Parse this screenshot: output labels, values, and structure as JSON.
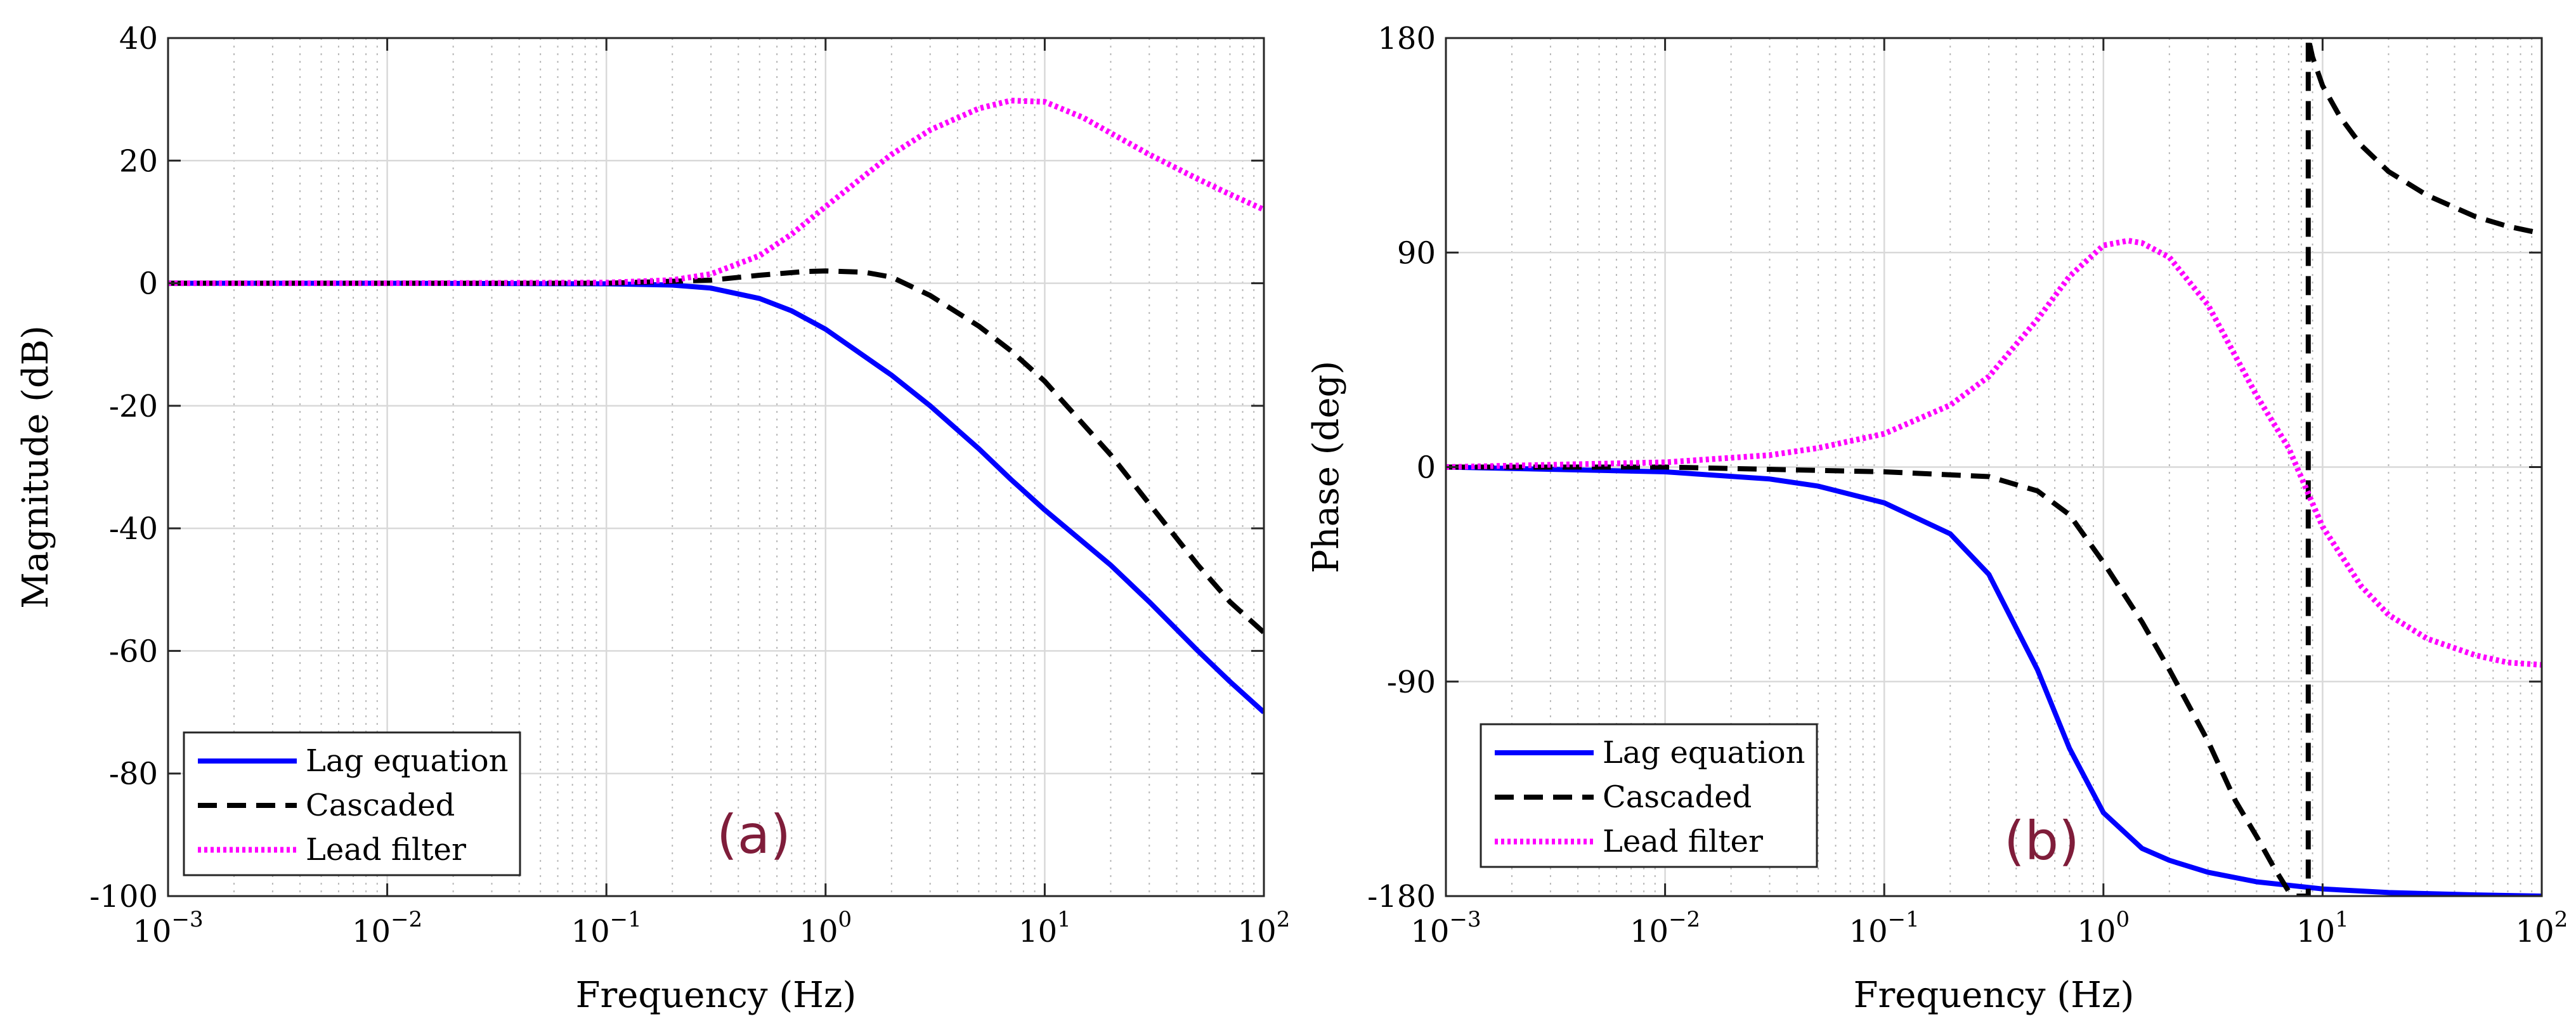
{
  "figure": {
    "panel_labels": [
      "(a)",
      "(b)"
    ]
  },
  "chart_data": [
    {
      "type": "line",
      "panel": "(a)",
      "title": "",
      "xlabel": "Frequency (Hz)",
      "ylabel": "Magnitude (dB)",
      "xscale": "log",
      "xlim": [
        0.001,
        100
      ],
      "ylim": [
        -100,
        40
      ],
      "xticks": [
        0.001,
        0.01,
        0.1,
        1,
        10,
        100
      ],
      "xtick_labels": [
        {
          "base": "10",
          "exp": "−3"
        },
        {
          "base": "10",
          "exp": "−2"
        },
        {
          "base": "10",
          "exp": "−1"
        },
        {
          "base": "10",
          "exp": "0"
        },
        {
          "base": "10",
          "exp": "1"
        },
        {
          "base": "10",
          "exp": "2"
        }
      ],
      "yticks": [
        -100,
        -80,
        -60,
        -40,
        -20,
        0,
        20,
        40
      ],
      "ytick_labels": [
        "-100",
        "-80",
        "-60",
        "-40",
        "-20",
        "0",
        "20",
        "40"
      ],
      "grid": true,
      "legend": {
        "location": "bottom-left",
        "entries": [
          "Lag equation",
          "Cascaded",
          "Lead filter"
        ]
      },
      "series": [
        {
          "name": "Lag equation",
          "color": "#0000ff",
          "style": "solid",
          "x": [
            0.001,
            0.01,
            0.1,
            0.2,
            0.3,
            0.5,
            0.7,
            1,
            2,
            3,
            5,
            7,
            10,
            20,
            30,
            50,
            70,
            100
          ],
          "y": [
            0,
            0,
            -0.1,
            -0.3,
            -0.8,
            -2.5,
            -4.5,
            -7.5,
            -15,
            -20,
            -27,
            -32,
            -37,
            -46,
            -52,
            -60,
            -65,
            -70
          ]
        },
        {
          "name": "Cascaded",
          "color": "#000000",
          "style": "dashed",
          "x": [
            0.001,
            0.01,
            0.1,
            0.3,
            0.5,
            0.8,
            1,
            1.5,
            2,
            3,
            5,
            7,
            10,
            20,
            30,
            50,
            70,
            100
          ],
          "y": [
            0,
            0,
            0,
            0.5,
            1.3,
            1.9,
            2,
            1.8,
            1,
            -2,
            -7,
            -11,
            -16,
            -28,
            -36,
            -46,
            -52,
            -57
          ]
        },
        {
          "name": "Lead filter",
          "color": "#ff00ff",
          "style": "dotted",
          "x": [
            0.001,
            0.01,
            0.1,
            0.2,
            0.3,
            0.5,
            0.7,
            1,
            1.5,
            2,
            3,
            5,
            7,
            10,
            15,
            20,
            30,
            50,
            70,
            100
          ],
          "y": [
            0,
            0,
            0.1,
            0.5,
            1.5,
            4.5,
            8,
            12.5,
            17.5,
            21,
            25,
            28.5,
            29.8,
            29.6,
            27,
            24.5,
            21,
            17,
            14.5,
            12
          ]
        }
      ]
    },
    {
      "type": "line",
      "panel": "(b)",
      "title": "",
      "xlabel": "Frequency (Hz)",
      "ylabel": "Phase (deg)",
      "xscale": "log",
      "xlim": [
        0.001,
        100
      ],
      "ylim": [
        -180,
        180
      ],
      "xticks": [
        0.001,
        0.01,
        0.1,
        1,
        10,
        100
      ],
      "xtick_labels": [
        {
          "base": "10",
          "exp": "−3"
        },
        {
          "base": "10",
          "exp": "−2"
        },
        {
          "base": "10",
          "exp": "−1"
        },
        {
          "base": "10",
          "exp": "0"
        },
        {
          "base": "10",
          "exp": "1"
        },
        {
          "base": "10",
          "exp": "2"
        }
      ],
      "yticks": [
        -180,
        -90,
        0,
        90,
        180
      ],
      "ytick_labels": [
        "-180",
        "-90",
        "0",
        "90",
        "180"
      ],
      "grid": true,
      "legend": {
        "location": "bottom-left",
        "entries": [
          "Lag equation",
          "Cascaded",
          "Lead filter"
        ]
      },
      "series": [
        {
          "name": "Lag equation",
          "color": "#0000ff",
          "style": "solid",
          "x": [
            0.001,
            0.01,
            0.03,
            0.05,
            0.1,
            0.2,
            0.3,
            0.5,
            0.7,
            1,
            1.5,
            2,
            3,
            5,
            10,
            20,
            50,
            100
          ],
          "y": [
            0,
            -2,
            -5,
            -8,
            -15,
            -28,
            -45,
            -85,
            -118,
            -145,
            -160,
            -165,
            -170,
            -174,
            -177,
            -178.5,
            -179.5,
            -180
          ]
        },
        {
          "name": "Cascaded",
          "color": "#000000",
          "style": "dashed",
          "x": [
            0.001,
            0.01,
            0.1,
            0.3,
            0.5,
            0.7,
            1,
            1.5,
            2,
            3,
            4,
            5,
            6,
            7,
            7.6,
            8.3,
            8.6,
            8.6,
            8.6,
            9,
            10,
            12,
            15,
            20,
            30,
            50,
            70,
            100
          ],
          "y": [
            0,
            0,
            -2,
            -4,
            -10,
            -20,
            -40,
            -65,
            -85,
            -115,
            -140,
            -155,
            -168,
            -178,
            -180,
            -180,
            -180,
            0,
            180,
            172,
            160,
            147,
            135,
            124,
            114,
            105,
            101,
            98
          ]
        },
        {
          "name": "Lead filter",
          "color": "#ff00ff",
          "style": "dotted",
          "x": [
            0.001,
            0.01,
            0.03,
            0.05,
            0.1,
            0.2,
            0.3,
            0.5,
            0.7,
            1,
            1.3,
            1.5,
            2,
            3,
            5,
            7,
            8.5,
            10,
            15,
            20,
            30,
            50,
            70,
            100
          ],
          "y": [
            0,
            2,
            5,
            8,
            14,
            26,
            38,
            62,
            80,
            93,
            95,
            94,
            88,
            68,
            30,
            8,
            -10,
            -25,
            -50,
            -62,
            -72,
            -79,
            -82,
            -83
          ]
        }
      ]
    }
  ]
}
